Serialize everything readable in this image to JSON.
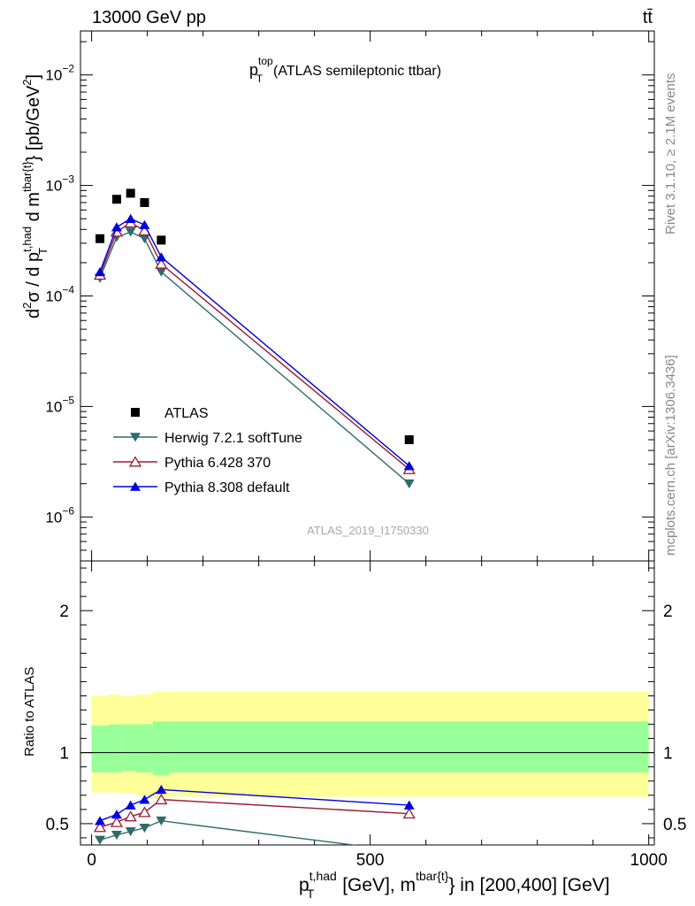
{
  "header": {
    "left": "13000 GeV pp",
    "right": "tt̄"
  },
  "side": {
    "right_top": "Rivet 3.1.10, ≥ 2.1M events",
    "right_bottom": "mcplots.cern.ch [arXiv:1306.3436]"
  },
  "watermark": "ATLAS_2019_I1750330",
  "chart_data": [
    {
      "type": "scatter",
      "title": "p_T^top (ATLAS semileptonic ttbar)",
      "ylabel": "d²σ / d p_T^{t,had} d m^{tbar{t}} [pb/GeV²]",
      "yscale": "log",
      "ylim": [
        4e-07,
        0.025
      ],
      "xlim": [
        -20,
        1010
      ],
      "ytick_labels": [
        "10^-6",
        "10^-5",
        "10^-4",
        "10^-3",
        "10^-2"
      ],
      "legend_position": "middle-left",
      "series": [
        {
          "name": "ATLAS",
          "color": "#000000",
          "marker": "square",
          "x": [
            15,
            45,
            70,
            95,
            125,
            570
          ],
          "y": [
            0.00033,
            0.00075,
            0.00085,
            0.0007,
            0.00032,
            5e-06
          ]
        },
        {
          "name": "Herwig 7.2.1 softTune",
          "color": "#2f6b6b",
          "marker": "triangle-down",
          "x": [
            15,
            45,
            70,
            95,
            125,
            570
          ],
          "y": [
            0.000145,
            0.00034,
            0.00038,
            0.00033,
            0.000165,
            2e-06
          ]
        },
        {
          "name": "Pythia 6.428 370",
          "color": "#9b1b30",
          "marker": "triangle-up-open",
          "x": [
            15,
            45,
            70,
            95,
            125,
            570
          ],
          "y": [
            0.000155,
            0.00038,
            0.00046,
            0.00039,
            0.000195,
            2.7e-06
          ]
        },
        {
          "name": "Pythia 8.308 default",
          "color": "#0000e0",
          "marker": "triangle-up",
          "x": [
            15,
            45,
            70,
            95,
            125,
            570
          ],
          "y": [
            0.000165,
            0.00042,
            0.0005,
            0.00044,
            0.000225,
            2.9e-06
          ]
        }
      ]
    },
    {
      "type": "line",
      "ylabel": "Ratio to ATLAS",
      "xlabel": "p_T^{t,had} [GeV], m^{tbar{t}} in [200,400] [GeV]",
      "ylim": [
        0.35,
        2.35
      ],
      "xlim": [
        -20,
        1010
      ],
      "ytick_labels": [
        "0.5",
        "1",
        "2"
      ],
      "xtick_labels": [
        "0",
        "500",
        "1000"
      ],
      "bands": {
        "bin_edges": [
          0,
          30,
          55,
          80,
          110,
          140,
          1000
        ],
        "yellow_low": [
          0.72,
          0.72,
          0.71,
          0.7,
          0.68,
          0.69
        ],
        "yellow_high": [
          1.4,
          1.41,
          1.4,
          1.41,
          1.43,
          1.43
        ],
        "green_low": [
          0.86,
          0.86,
          0.87,
          0.86,
          0.84,
          0.86
        ],
        "green_high": [
          1.19,
          1.2,
          1.2,
          1.2,
          1.22,
          1.22
        ]
      },
      "series": [
        {
          "name": "Herwig 7.2.1 softTune",
          "color": "#2f6b6b",
          "marker": "triangle-down",
          "x": [
            15,
            45,
            70,
            95,
            125,
            570
          ],
          "y": [
            0.385,
            0.42,
            0.445,
            0.47,
            0.52,
            0.3
          ]
        },
        {
          "name": "Pythia 6.428 370",
          "color": "#9b1b30",
          "marker": "triangle-up-open",
          "x": [
            15,
            45,
            70,
            95,
            125,
            570
          ],
          "y": [
            0.475,
            0.51,
            0.55,
            0.58,
            0.67,
            0.57
          ]
        },
        {
          "name": "Pythia 8.308 default",
          "color": "#0000e0",
          "marker": "triangle-up",
          "x": [
            15,
            45,
            70,
            95,
            125,
            570
          ],
          "y": [
            0.52,
            0.565,
            0.63,
            0.67,
            0.74,
            0.63
          ]
        }
      ]
    }
  ]
}
